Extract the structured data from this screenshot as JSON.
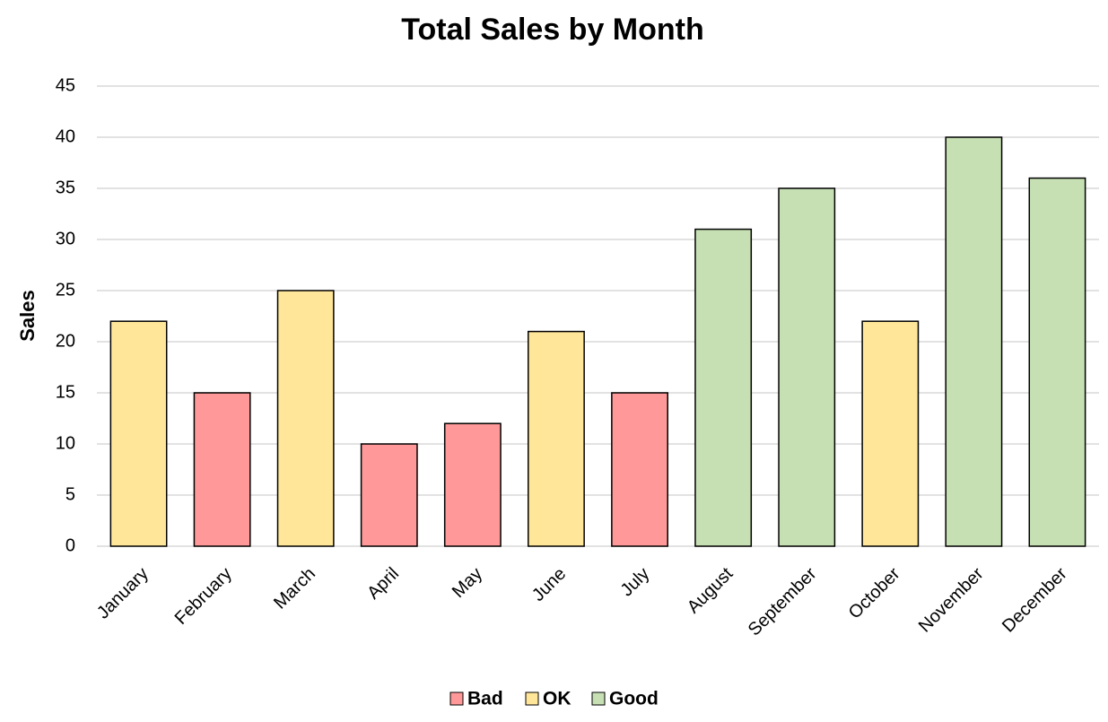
{
  "chart_data": {
    "type": "bar",
    "title": "Total Sales by Month",
    "y_label": "Sales",
    "categories": [
      "January",
      "February",
      "March",
      "April",
      "May",
      "June",
      "July",
      "August",
      "September",
      "October",
      "November",
      "December"
    ],
    "series": [
      {
        "name": "Bad",
        "color": "#ff9999",
        "values": [
          null,
          15,
          null,
          10,
          12,
          null,
          15,
          null,
          null,
          null,
          null,
          null
        ]
      },
      {
        "name": "OK",
        "color": "#ffe699",
        "values": [
          22,
          null,
          25,
          null,
          null,
          21,
          null,
          null,
          null,
          22,
          null,
          null
        ]
      },
      {
        "name": "Good",
        "color": "#c6e0b4",
        "values": [
          null,
          null,
          null,
          null,
          null,
          null,
          null,
          31,
          35,
          null,
          40,
          36
        ]
      }
    ],
    "ylim": [
      0,
      45
    ],
    "yticks": [
      0,
      5,
      10,
      15,
      20,
      25,
      30,
      35,
      40,
      45
    ],
    "grid": true,
    "legend": "bottom"
  }
}
